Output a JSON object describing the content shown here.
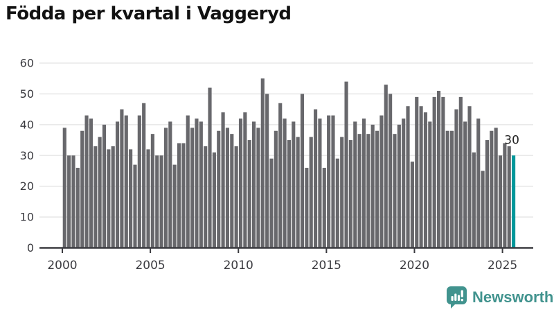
{
  "title": "Födda per kvartal i Vaggeryd",
  "logo": {
    "text": "Newsworthy",
    "icon": "newsworthy-speech-bubble-barchart-icon"
  },
  "colors": {
    "bar": "#68686c",
    "highlight": "#00989b",
    "grid": "#e9e9e9",
    "axis": "#3b3b40",
    "tick_label": "#3b3b40",
    "title": "#121212",
    "annotation": "#222222",
    "logo": "#41938e",
    "background": "#ffffff"
  },
  "chart_data": {
    "type": "bar",
    "title": "Födda per kvartal i Vaggeryd",
    "xlabel": "",
    "ylabel": "",
    "x_start": "2000-Q1",
    "x_end": "2025-Q3",
    "period": "quarterly",
    "values": [
      39,
      30,
      30,
      26,
      38,
      43,
      42,
      33,
      36,
      40,
      32,
      33,
      41,
      45,
      43,
      32,
      27,
      43,
      47,
      32,
      37,
      30,
      30,
      39,
      41,
      27,
      34,
      34,
      43,
      39,
      42,
      41,
      33,
      52,
      31,
      38,
      44,
      39,
      37,
      33,
      42,
      44,
      35,
      41,
      39,
      55,
      50,
      29,
      38,
      47,
      42,
      35,
      41,
      36,
      50,
      26,
      36,
      45,
      42,
      26,
      43,
      43,
      29,
      36,
      54,
      35,
      41,
      37,
      42,
      37,
      40,
      38,
      43,
      53,
      50,
      37,
      40,
      42,
      46,
      28,
      49,
      46,
      44,
      41,
      49,
      51,
      49,
      38,
      38,
      45,
      49,
      41,
      46,
      31,
      42,
      25,
      35,
      38,
      39,
      30,
      34,
      33,
      30
    ],
    "highlight_index": 102,
    "last_value_label": "30",
    "ylim": [
      0,
      60
    ],
    "y_ticks": [
      "0",
      "10",
      "20",
      "30",
      "40",
      "50",
      "60"
    ],
    "x_ticks": [
      "2000",
      "2005",
      "2010",
      "2015",
      "2020",
      "2025"
    ],
    "grid": true,
    "legend": "none"
  }
}
